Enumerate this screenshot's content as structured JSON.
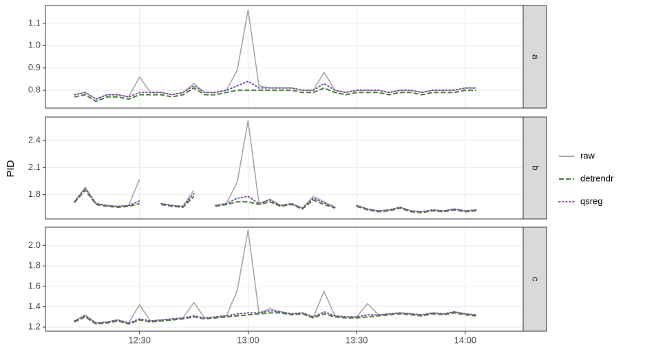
{
  "chart_data": {
    "type": "line",
    "y_label": "PID",
    "x": [
      "12:12",
      "12:15",
      "12:18",
      "12:21",
      "12:24",
      "12:27",
      "12:30",
      "12:33",
      "12:36",
      "12:39",
      "12:42",
      "12:45",
      "12:48",
      "12:51",
      "12:54",
      "12:57",
      "13:00",
      "13:03",
      "13:06",
      "13:09",
      "13:12",
      "13:15",
      "13:18",
      "13:21",
      "13:24",
      "13:27",
      "13:30",
      "13:33",
      "13:36",
      "13:39",
      "13:42",
      "13:45",
      "13:48",
      "13:51",
      "13:54",
      "13:57",
      "14:00",
      "14:03"
    ],
    "xlim": [
      "12:04",
      "14:16"
    ],
    "xticks": [
      "12:30",
      "13:00",
      "13:30",
      "14:00"
    ],
    "series": [
      {
        "name": "raw",
        "color": "#a6a6a6",
        "dash": "solid"
      },
      {
        "name": "detrendr",
        "color": "#4a7d3c",
        "dash": "dashed"
      },
      {
        "name": "qsreg",
        "color": "#7b4f9e",
        "dash": "dotted"
      }
    ],
    "panels": [
      {
        "label": "a",
        "ylim": [
          0.72,
          1.18
        ],
        "yticks": [
          0.8,
          0.9,
          {
            "value": 1,
            "label": "1.0"
          },
          1.1
        ],
        "values": [
          [
            0.78,
            0.79,
            0.76,
            0.78,
            0.78,
            0.77,
            0.86,
            0.79,
            0.79,
            0.78,
            0.79,
            0.83,
            0.79,
            0.79,
            0.8,
            0.89,
            1.16,
            0.82,
            0.81,
            0.81,
            0.81,
            0.8,
            0.8,
            0.88,
            0.8,
            0.79,
            0.8,
            0.8,
            0.8,
            0.79,
            0.8,
            0.8,
            0.79,
            0.8,
            0.8,
            0.8,
            0.81,
            0.81
          ],
          [
            0.77,
            0.78,
            0.75,
            0.77,
            0.77,
            0.76,
            0.78,
            0.78,
            0.78,
            0.77,
            0.78,
            0.81,
            0.78,
            0.78,
            0.79,
            0.8,
            0.8,
            0.8,
            0.8,
            0.8,
            0.8,
            0.79,
            0.79,
            0.81,
            0.79,
            0.78,
            0.79,
            0.79,
            0.79,
            0.78,
            0.79,
            0.79,
            0.78,
            0.79,
            0.79,
            0.79,
            0.8,
            0.8
          ],
          [
            0.78,
            0.79,
            0.76,
            0.78,
            0.78,
            0.77,
            0.79,
            0.79,
            0.79,
            0.78,
            0.79,
            0.82,
            0.79,
            0.79,
            0.8,
            0.82,
            0.84,
            0.81,
            0.81,
            0.81,
            0.81,
            0.8,
            0.8,
            0.83,
            0.8,
            0.79,
            0.8,
            0.8,
            0.8,
            0.79,
            0.8,
            0.8,
            0.79,
            0.8,
            0.8,
            0.8,
            0.81,
            0.81
          ]
        ]
      },
      {
        "label": "b",
        "ylim": [
          1.53,
          2.66
        ],
        "yticks": [
          1.8,
          2.1,
          2.4
        ],
        "values": [
          [
            1.72,
            1.88,
            1.7,
            1.68,
            1.67,
            1.68,
            1.97,
            null,
            1.7,
            1.68,
            1.67,
            1.85,
            null,
            1.68,
            1.7,
            1.94,
            2.62,
            1.7,
            1.75,
            1.68,
            1.7,
            1.65,
            1.78,
            1.72,
            1.66,
            null,
            1.68,
            1.64,
            1.62,
            1.63,
            1.66,
            1.62,
            1.61,
            1.63,
            1.62,
            1.64,
            1.62,
            1.63
          ],
          [
            1.71,
            1.85,
            1.69,
            1.67,
            1.66,
            1.67,
            1.7,
            null,
            1.69,
            1.67,
            1.66,
            1.78,
            null,
            1.67,
            1.69,
            1.72,
            1.72,
            1.69,
            1.72,
            1.67,
            1.69,
            1.64,
            1.74,
            1.69,
            1.65,
            null,
            1.67,
            1.63,
            1.61,
            1.62,
            1.65,
            1.61,
            1.6,
            1.62,
            1.61,
            1.63,
            1.61,
            1.62
          ],
          [
            1.72,
            1.87,
            1.7,
            1.68,
            1.67,
            1.68,
            1.73,
            null,
            1.7,
            1.68,
            1.67,
            1.81,
            null,
            1.68,
            1.7,
            1.76,
            1.78,
            1.7,
            1.74,
            1.68,
            1.7,
            1.65,
            1.76,
            1.71,
            1.66,
            null,
            1.68,
            1.64,
            1.62,
            1.63,
            1.66,
            1.62,
            1.61,
            1.63,
            1.62,
            1.64,
            1.62,
            1.63
          ]
        ]
      },
      {
        "label": "c",
        "ylim": [
          1.16,
          2.18
        ],
        "yticks": [
          1.2,
          1.4,
          1.6,
          1.8,
          {
            "value": 2,
            "label": "2.0"
          }
        ],
        "values": [
          [
            1.26,
            1.32,
            1.24,
            1.25,
            1.27,
            1.24,
            1.42,
            1.26,
            1.27,
            1.28,
            1.29,
            1.44,
            1.29,
            1.3,
            1.31,
            1.56,
            2.15,
            1.34,
            1.38,
            1.35,
            1.33,
            1.34,
            1.3,
            1.55,
            1.31,
            1.3,
            1.3,
            1.43,
            1.32,
            1.33,
            1.34,
            1.33,
            1.32,
            1.34,
            1.33,
            1.35,
            1.33,
            1.32
          ],
          [
            1.25,
            1.3,
            1.23,
            1.24,
            1.26,
            1.23,
            1.27,
            1.25,
            1.26,
            1.27,
            1.28,
            1.3,
            1.28,
            1.29,
            1.3,
            1.31,
            1.32,
            1.33,
            1.34,
            1.34,
            1.32,
            1.33,
            1.29,
            1.33,
            1.3,
            1.29,
            1.29,
            1.3,
            1.31,
            1.32,
            1.33,
            1.32,
            1.31,
            1.33,
            1.32,
            1.34,
            1.32,
            1.31
          ],
          [
            1.26,
            1.31,
            1.24,
            1.25,
            1.27,
            1.24,
            1.28,
            1.26,
            1.27,
            1.28,
            1.29,
            1.31,
            1.29,
            1.3,
            1.31,
            1.33,
            1.34,
            1.34,
            1.36,
            1.35,
            1.33,
            1.34,
            1.3,
            1.35,
            1.31,
            1.3,
            1.3,
            1.32,
            1.32,
            1.33,
            1.34,
            1.33,
            1.32,
            1.34,
            1.33,
            1.35,
            1.33,
            1.32
          ]
        ]
      }
    ]
  }
}
